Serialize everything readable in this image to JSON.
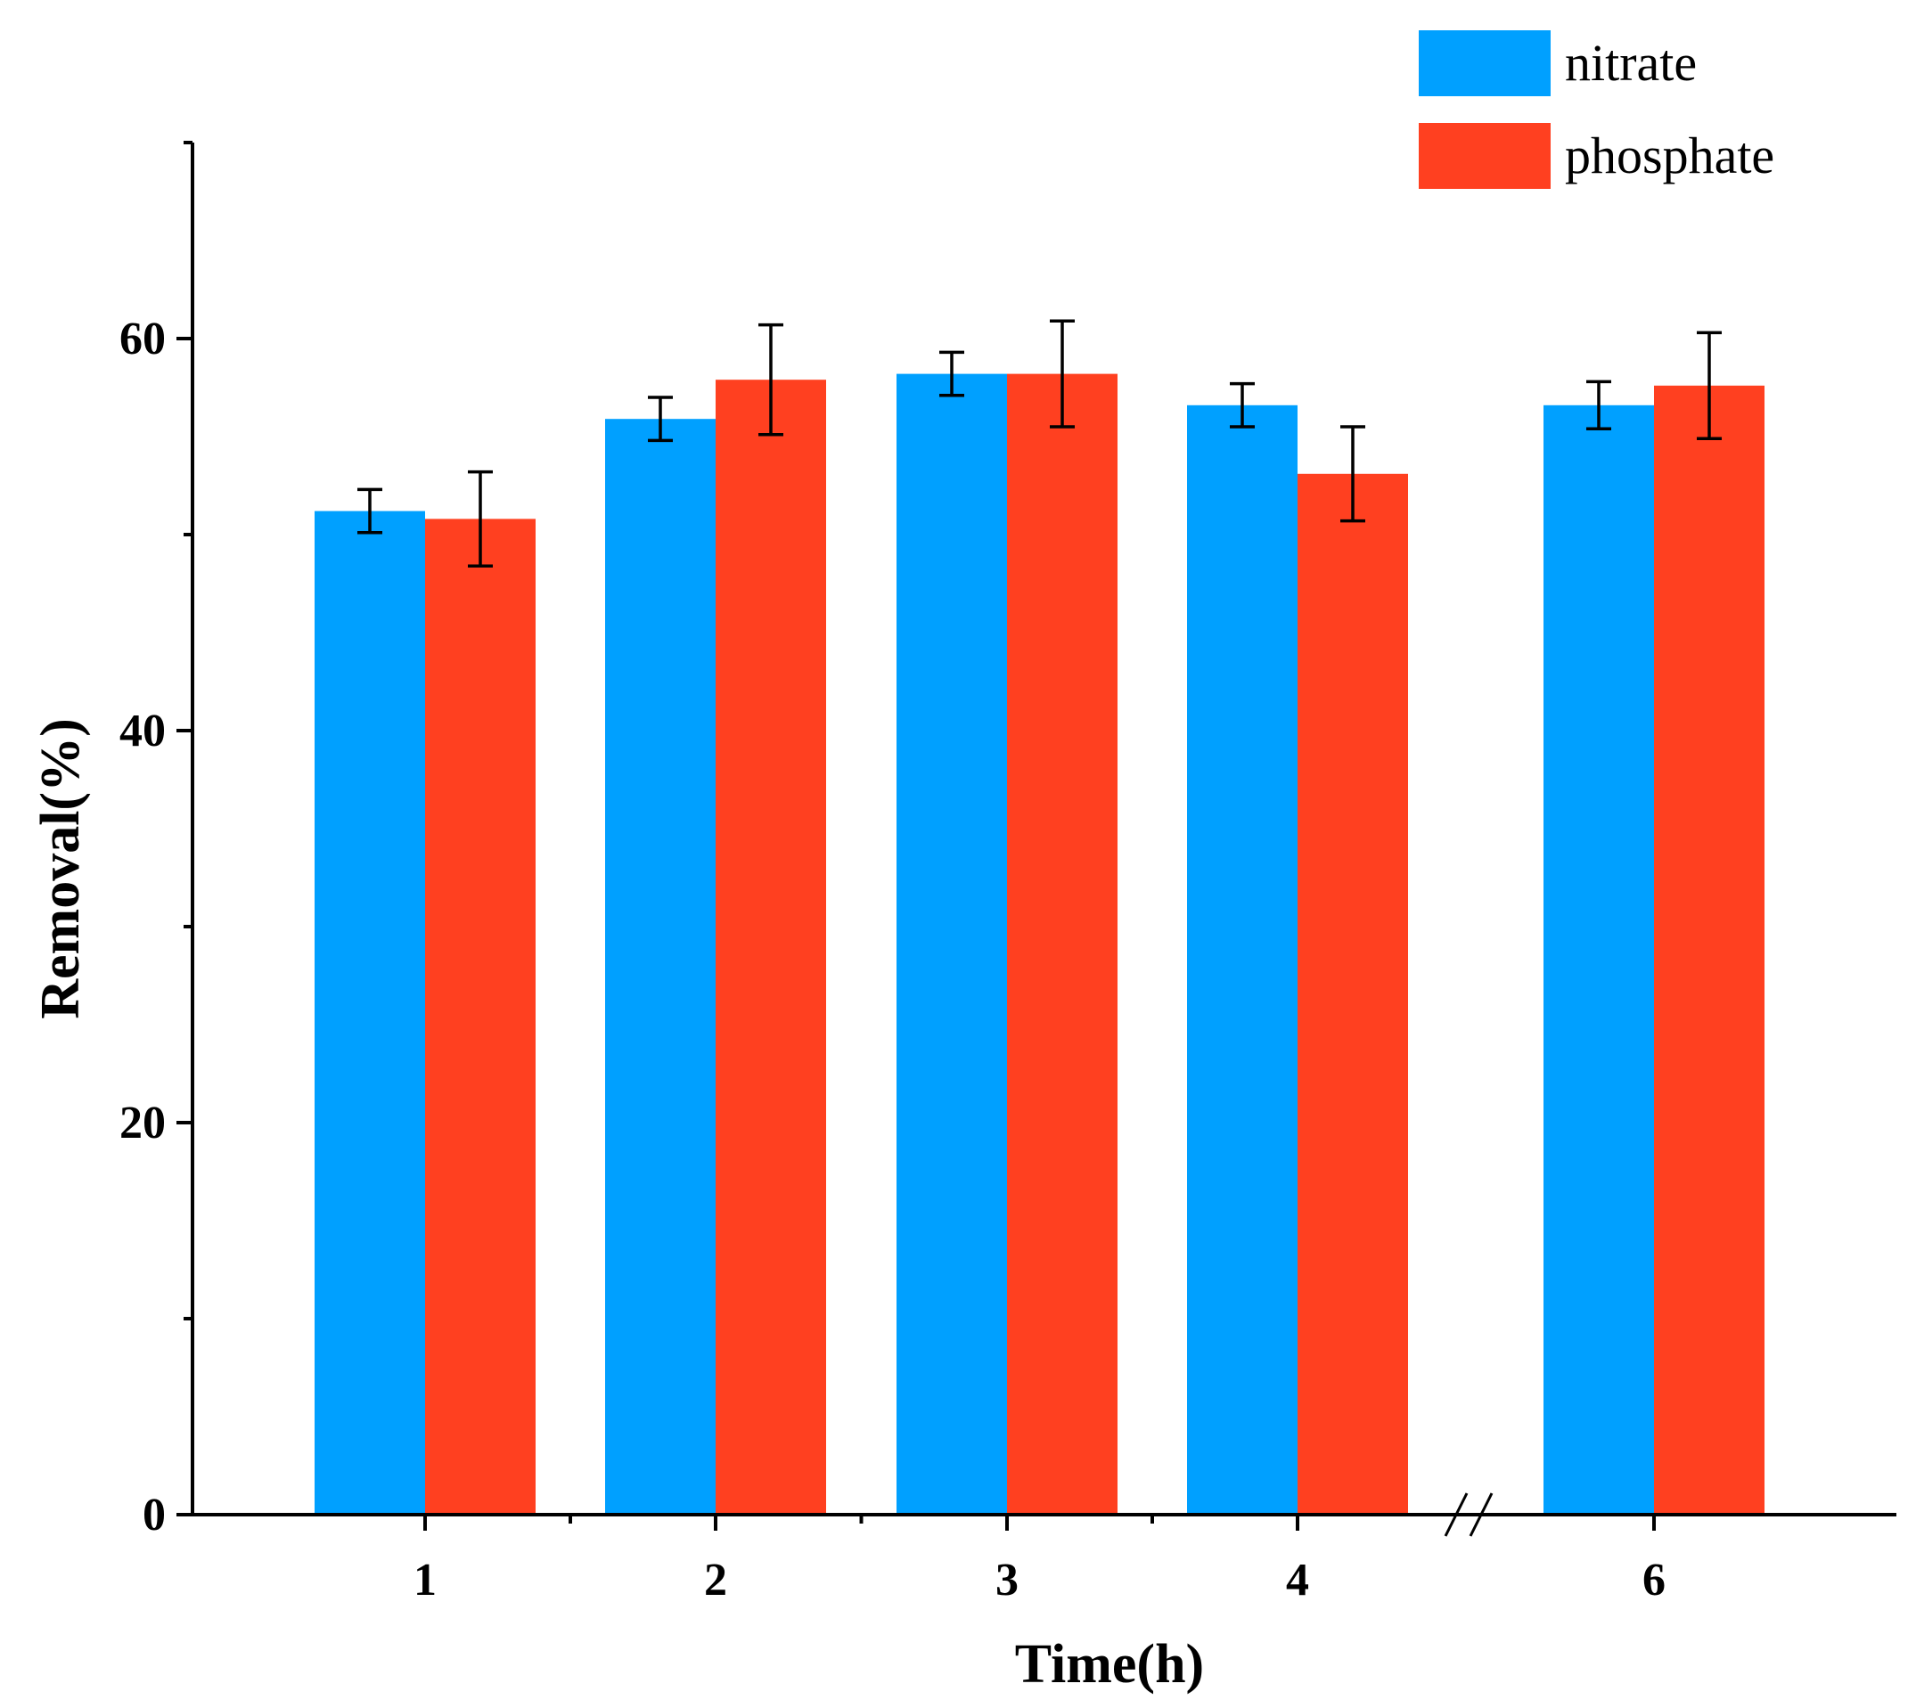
{
  "chart_data": {
    "type": "bar",
    "xlabel": "Time(h)",
    "ylabel": "Removal(%)",
    "categories": [
      "1",
      "2",
      "3",
      "4",
      "6"
    ],
    "axis_break_between": [
      "4",
      "6"
    ],
    "ylim": [
      0,
      70
    ],
    "yticks": [
      0,
      20,
      40,
      60
    ],
    "yminor_ticks": [
      10,
      30,
      50,
      70
    ],
    "legend_position": "top-right",
    "series": [
      {
        "name": "nitrate",
        "color": "#00A0FF",
        "values": [
          51.2,
          55.9,
          58.2,
          56.6,
          56.6
        ],
        "errors": [
          1.1,
          1.1,
          1.1,
          1.1,
          1.2
        ]
      },
      {
        "name": "phosphate",
        "color": "#FF4020",
        "values": [
          50.8,
          57.9,
          58.2,
          53.1,
          57.6
        ],
        "errors": [
          2.4,
          2.8,
          2.7,
          2.4,
          2.7
        ]
      }
    ]
  }
}
